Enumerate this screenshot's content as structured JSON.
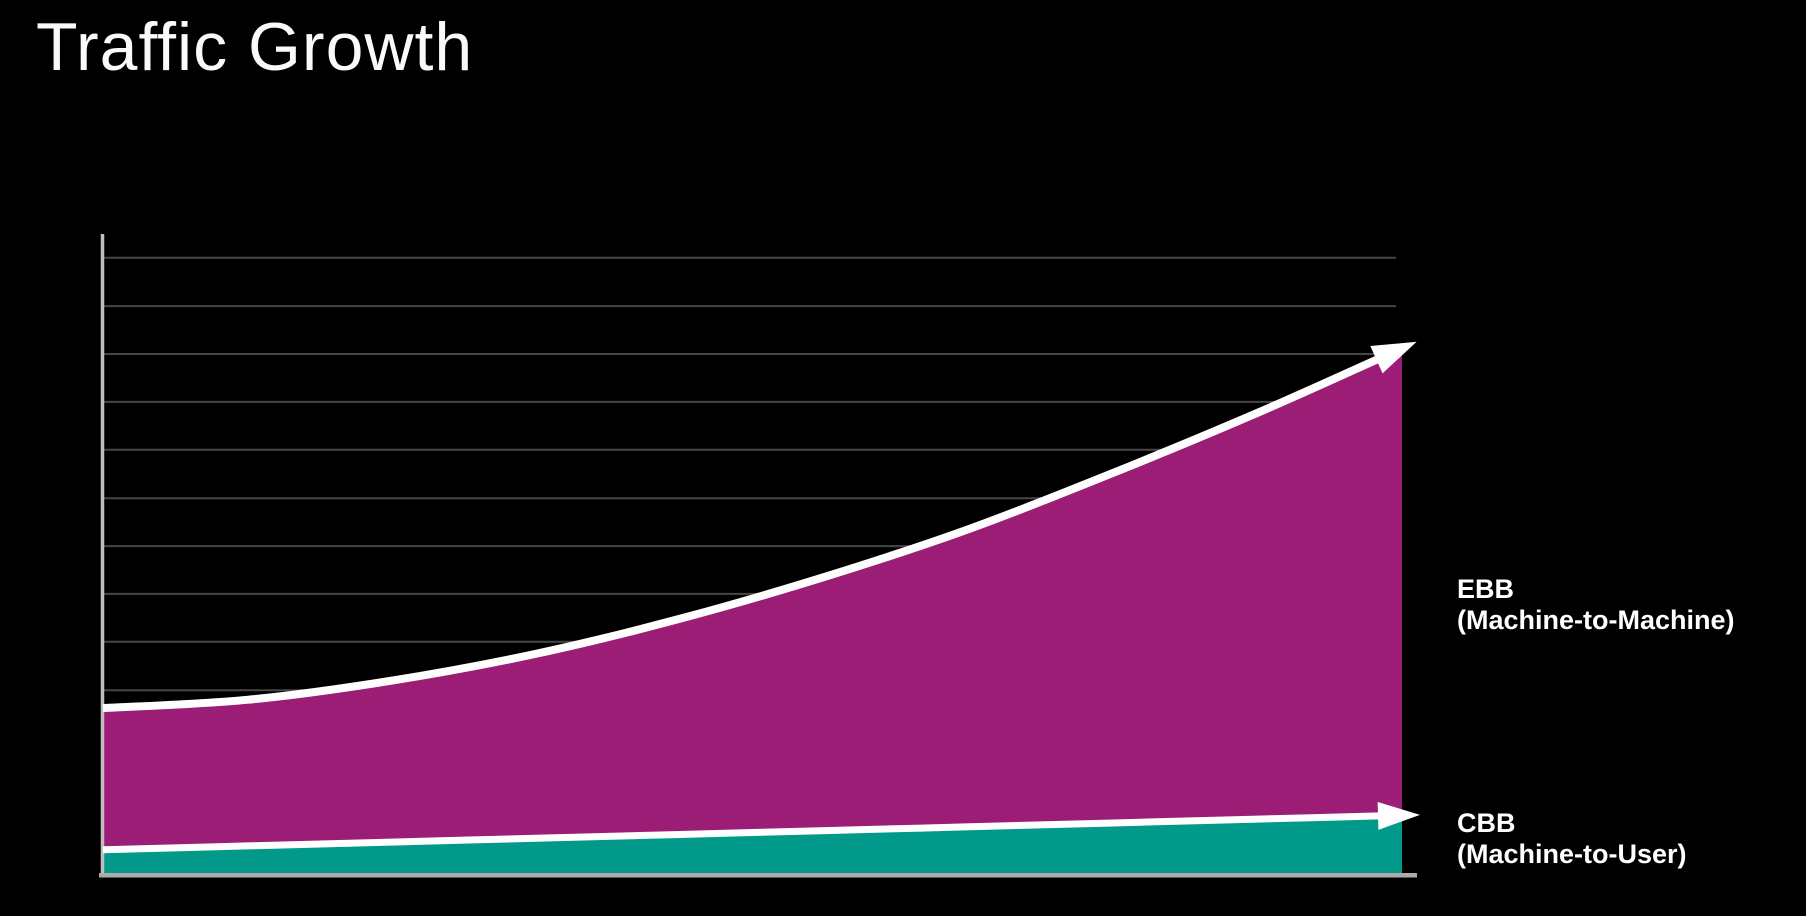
{
  "header": {
    "title": "Traffic Growth"
  },
  "chart_data": {
    "type": "area",
    "title": "Traffic Growth",
    "stacked": true,
    "values_are": "cumulative_top_of_band",
    "x": [
      0,
      0.111,
      0.222,
      0.333,
      0.444,
      0.556,
      0.667,
      0.778,
      0.889,
      1
    ],
    "x_axis": {
      "label": "",
      "tick_labels": []
    },
    "y_axis": {
      "label": "",
      "tick_labels": [],
      "range": [
        0,
        100
      ]
    },
    "grid": {
      "horizontal": true,
      "color": "#474747",
      "values": [
        28.8,
        36.4,
        43.9,
        51.4,
        58.9,
        66.5,
        74.0,
        81.5,
        89.0,
        96.6
      ]
    },
    "axis_color": "#ACACAC",
    "legend_position": "right-of-plot",
    "series": [
      {
        "name": "EBB (Machine-to-Machine)",
        "label_lines": [
          "EBB",
          "(Machine-to-Machine)"
        ],
        "fill_color": "#9B1D76",
        "line_color": "#FFFFFF",
        "arrow": true,
        "values": [
          26.0,
          27.3,
          30.3,
          34.5,
          40.0,
          46.6,
          54.1,
          62.9,
          72.3,
          82.4
        ]
      },
      {
        "name": "CBB (Machine-to-User)",
        "label_lines": [
          "CBB",
          "(Machine-to-User)"
        ],
        "fill_color": "#00998A",
        "line_color": "#FFFFFF",
        "arrow": true,
        "values": [
          3.8,
          4.4,
          5.0,
          5.6,
          6.2,
          6.8,
          7.4,
          8.0,
          8.6,
          9.2
        ]
      }
    ]
  }
}
